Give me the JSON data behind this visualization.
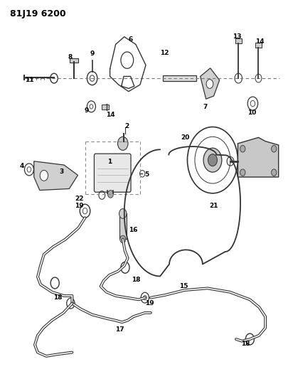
{
  "title": "81J19 6200",
  "bg_color": "#ffffff",
  "line_color": "#333333",
  "text_color": "#000000",
  "fig_width": 4.06,
  "fig_height": 5.33,
  "dpi": 100
}
